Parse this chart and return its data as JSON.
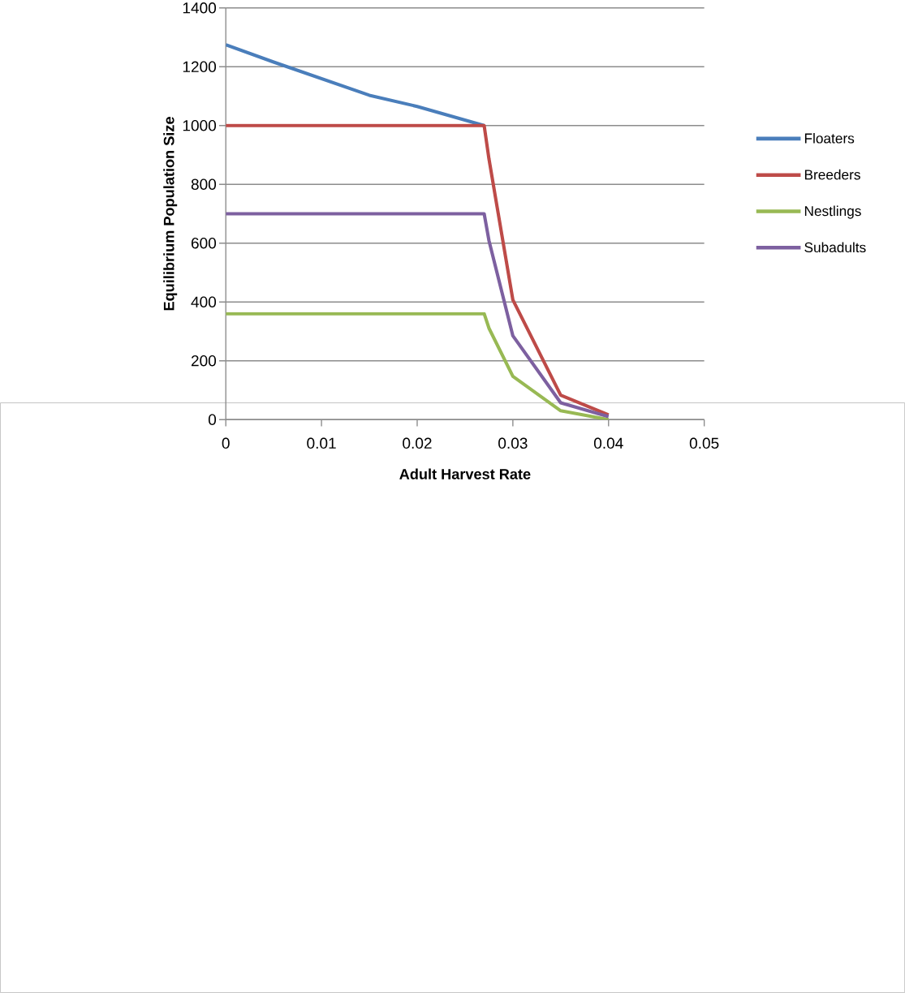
{
  "chart_data": {
    "type": "line",
    "xlabel": "Adult Harvest  Rate",
    "ylabel": "Equilibrium  Population Size",
    "x": [
      0,
      0.005,
      0.015,
      0.02,
      0.027,
      0.0275,
      0.03,
      0.035,
      0.04
    ],
    "series": [
      {
        "name": "Floaters",
        "color": "#4a7ebb",
        "values": [
          1275,
          1216,
          1103,
          1065,
          1000,
          null,
          null,
          null,
          null
        ]
      },
      {
        "name": "Breeders",
        "color": "#be4b48",
        "values": [
          1000,
          1000,
          1000,
          1000,
          1000,
          887,
          407,
          83,
          16
        ]
      },
      {
        "name": "Nestlings",
        "color": "#98b954",
        "values": [
          360,
          360,
          360,
          360,
          360,
          311,
          147,
          30,
          0
        ]
      },
      {
        "name": "Subadults",
        "color": "#7d60a0",
        "values": [
          700,
          700,
          700,
          700,
          700,
          609,
          285,
          57,
          10
        ]
      }
    ],
    "xlim": [
      0,
      0.05
    ],
    "xticks": [
      0,
      0.01,
      0.02,
      0.03,
      0.04,
      0.05
    ],
    "ylim": [
      0,
      1400
    ],
    "yticks": [
      0,
      200,
      400,
      600,
      800,
      1000,
      1200,
      1400
    ],
    "grid": "y",
    "legend": "right",
    "marker": "none",
    "line_style": "solid"
  }
}
